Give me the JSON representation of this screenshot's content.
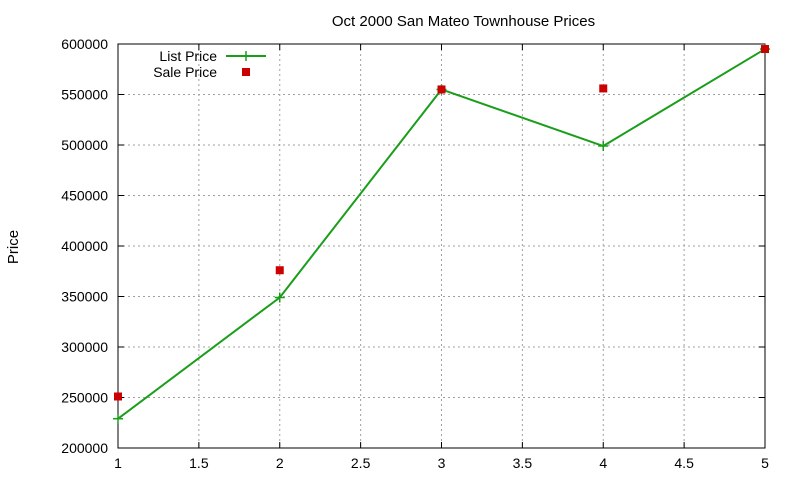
{
  "chart_data": {
    "type": "line",
    "title": "Oct 2000 San Mateo Townhouse Prices",
    "xlabel": "",
    "ylabel": "Price",
    "xlim": [
      1,
      5
    ],
    "ylim": [
      200000,
      600000
    ],
    "x_ticks": [
      1,
      1.5,
      2,
      2.5,
      3,
      3.5,
      4,
      4.5,
      5
    ],
    "y_ticks": [
      200000,
      250000,
      300000,
      350000,
      400000,
      450000,
      500000,
      550000,
      600000
    ],
    "grid": true,
    "legend_position": "top-left",
    "series": [
      {
        "name": "List Price",
        "style": "linespoints",
        "marker": "plus",
        "color": "#1a9e1a",
        "x": [
          1,
          2,
          3,
          4,
          5
        ],
        "y": [
          229000,
          349000,
          555000,
          499000,
          595000
        ]
      },
      {
        "name": "Sale Price",
        "style": "points",
        "marker": "square",
        "color": "#cc0000",
        "x": [
          1,
          2,
          3,
          4,
          5
        ],
        "y": [
          251000,
          376000,
          555000,
          556000,
          595000
        ]
      }
    ]
  }
}
